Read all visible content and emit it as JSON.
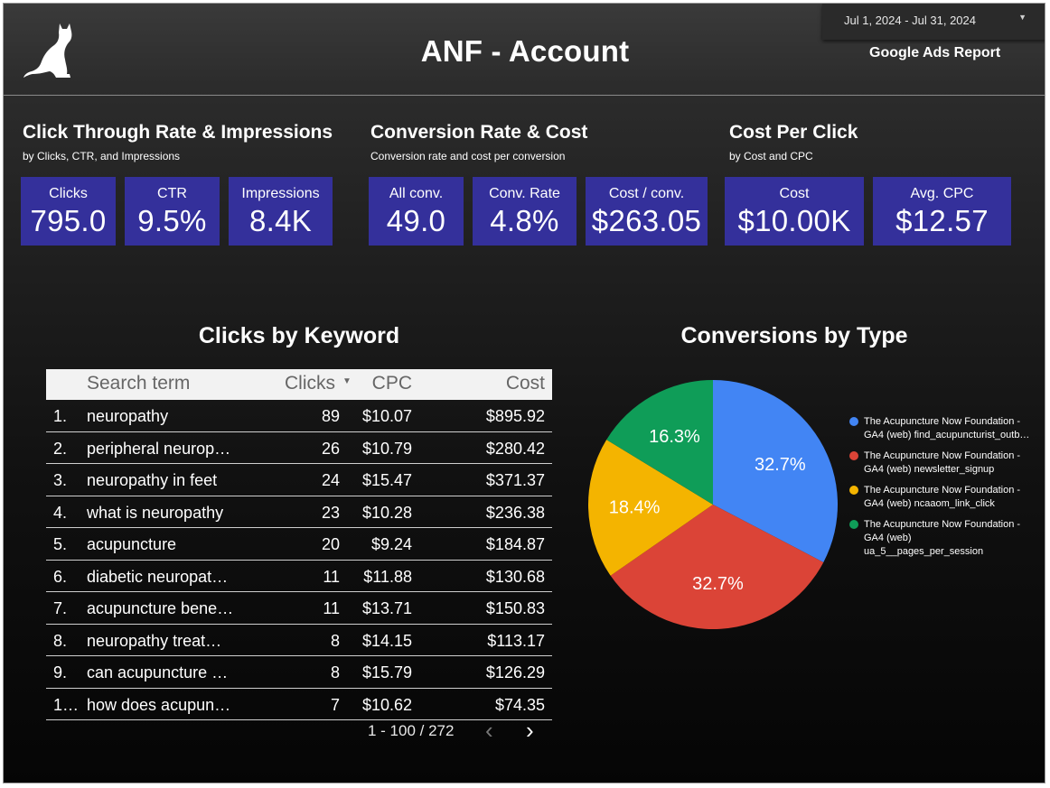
{
  "header": {
    "title": "ANF - Account",
    "report_name": "Google Ads Report",
    "date_range": "Jul 1, 2024 - Jul 31, 2024",
    "logo_icon": "cat-silhouette-icon"
  },
  "sections": [
    {
      "title": "Click Through Rate & Impressions",
      "subtitle": "by Clicks, CTR, and Impressions",
      "kpis": [
        {
          "label": "Clicks",
          "value": "795.0"
        },
        {
          "label": "CTR",
          "value": "9.5%"
        },
        {
          "label": "Impressions",
          "value": "8.4K"
        }
      ]
    },
    {
      "title": "Conversion Rate & Cost",
      "subtitle": "Conversion rate and cost per conversion",
      "kpis": [
        {
          "label": "All conv.",
          "value": "49.0"
        },
        {
          "label": "Conv. Rate",
          "value": "4.8%"
        },
        {
          "label": "Cost / conv.",
          "value": "$263.05"
        }
      ]
    },
    {
      "title": "Cost Per Click",
      "subtitle": "by Cost and CPC",
      "kpis": [
        {
          "label": "Cost",
          "value": "$10.00K"
        },
        {
          "label": "Avg. CPC",
          "value": "$12.57"
        }
      ]
    }
  ],
  "kpi_color": "#34309b",
  "keywords": {
    "title": "Clicks by Keyword",
    "columns": [
      "Search term",
      "Clicks",
      "CPC",
      "Cost"
    ],
    "rows": [
      [
        "1.",
        "neuropathy",
        "89",
        "$10.07",
        "$895.92"
      ],
      [
        "2.",
        "peripheral neurop…",
        "26",
        "$10.79",
        "$280.42"
      ],
      [
        "3.",
        "neuropathy in feet",
        "24",
        "$15.47",
        "$371.37"
      ],
      [
        "4.",
        "what is neuropathy",
        "23",
        "$10.28",
        "$236.38"
      ],
      [
        "5.",
        "acupuncture",
        "20",
        "$9.24",
        "$184.87"
      ],
      [
        "6.",
        "diabetic neuropat…",
        "11",
        "$11.88",
        "$130.68"
      ],
      [
        "7.",
        "acupuncture bene…",
        "11",
        "$13.71",
        "$150.83"
      ],
      [
        "8.",
        "neuropathy treat…",
        "8",
        "$14.15",
        "$113.17"
      ],
      [
        "9.",
        "can acupuncture …",
        "8",
        "$15.79",
        "$126.29"
      ],
      [
        "1…",
        "how does acupun…",
        "7",
        "$10.62",
        "$74.35"
      ]
    ],
    "pagination": "1 - 100 / 272"
  },
  "chart_data": {
    "type": "pie",
    "title": "Conversions by Type",
    "slices": [
      {
        "label": "The Acupuncture Now Foundation - GA4 (web) find_acupuncturist_outb…",
        "value": 32.7,
        "display": "32.7%",
        "color": "#4285f4"
      },
      {
        "label": "The Acupuncture Now Foundation - GA4 (web) newsletter_signup",
        "value": 32.7,
        "display": "32.7%",
        "color": "#db4437"
      },
      {
        "label": "The Acupuncture Now Foundation - GA4 (web) ncaaom_link_click",
        "value": 18.4,
        "display": "18.4%",
        "color": "#f4b400"
      },
      {
        "label": "The Acupuncture Now Foundation - GA4 (web) ua_5__pages_per_session",
        "value": 16.3,
        "display": "16.3%",
        "color": "#0f9d58"
      }
    ],
    "legend_position": "right"
  }
}
